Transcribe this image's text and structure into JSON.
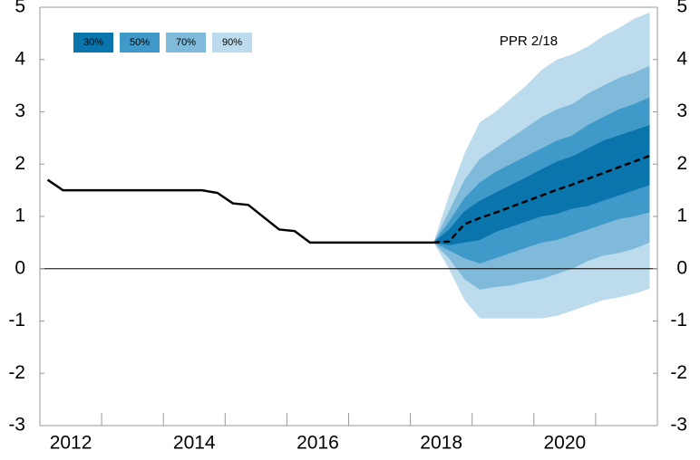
{
  "chart_data": {
    "type": "fan",
    "annotation": "PPR 2/18",
    "xlim": [
      2012,
      2022
    ],
    "xticks": [
      2012,
      2014,
      2016,
      2018,
      2020
    ],
    "ylim": [
      -3,
      5
    ],
    "yticks": [
      -3,
      -2,
      -1,
      0,
      1,
      2,
      3,
      4,
      5
    ],
    "fan_x": [
      2018.375,
      2018.625,
      2018.875,
      2019.125,
      2019.375,
      2019.625,
      2019.875,
      2020.125,
      2020.375,
      2020.625,
      2020.875,
      2021.125,
      2021.375,
      2021.625,
      2021.875
    ],
    "fan": [
      {
        "name": "30%",
        "color": "#0a75ad",
        "text_color": "#1a1a1a",
        "lower": [
          0.5,
          0.45,
          0.5,
          0.55,
          0.7,
          0.8,
          0.9,
          1.0,
          1.05,
          1.15,
          1.2,
          1.3,
          1.4,
          1.5,
          1.6
        ],
        "upper": [
          0.5,
          0.75,
          1.1,
          1.3,
          1.45,
          1.6,
          1.75,
          1.9,
          2.05,
          2.15,
          2.3,
          2.45,
          2.55,
          2.65,
          2.75
        ]
      },
      {
        "name": "50%",
        "color": "#3f9ac9",
        "text_color": "#1a1a1a",
        "lower": [
          0.5,
          0.35,
          0.2,
          0.1,
          0.2,
          0.3,
          0.4,
          0.5,
          0.55,
          0.65,
          0.75,
          0.85,
          0.95,
          1.0,
          1.08
        ],
        "upper": [
          0.5,
          0.9,
          1.35,
          1.65,
          1.85,
          2.0,
          2.15,
          2.3,
          2.45,
          2.55,
          2.75,
          2.9,
          3.05,
          3.15,
          3.28
        ]
      },
      {
        "name": "70%",
        "color": "#7fbadb",
        "text_color": "#1a1a1a",
        "lower": [
          0.5,
          0.2,
          -0.2,
          -0.4,
          -0.35,
          -0.32,
          -0.25,
          -0.2,
          -0.1,
          0,
          0.15,
          0.25,
          0.3,
          0.38,
          0.5
        ],
        "upper": [
          0.5,
          1.1,
          1.7,
          2.1,
          2.3,
          2.5,
          2.7,
          2.9,
          3.05,
          3.15,
          3.35,
          3.5,
          3.65,
          3.75,
          3.88
        ]
      },
      {
        "name": "90%",
        "color": "#bcdcee",
        "text_color": "#1a1a1a",
        "lower": [
          0.5,
          0,
          -0.6,
          -0.95,
          -0.95,
          -0.95,
          -0.95,
          -0.95,
          -0.9,
          -0.8,
          -0.7,
          -0.6,
          -0.55,
          -0.48,
          -0.38
        ],
        "upper": [
          0.5,
          1.4,
          2.2,
          2.8,
          3.0,
          3.25,
          3.5,
          3.8,
          4.0,
          4.1,
          4.25,
          4.45,
          4.6,
          4.78,
          4.9
        ]
      }
    ],
    "series": [
      {
        "color": "#000000",
        "dashed": false,
        "x": [
          2012.125,
          2012.375,
          2014.625,
          2014.875,
          2015.125,
          2015.375,
          2015.875,
          2016.125,
          2016.375,
          2018.375
        ],
        "values": [
          1.7,
          1.5,
          1.5,
          1.45,
          1.25,
          1.22,
          0.75,
          0.72,
          0.5,
          0.5
        ]
      },
      {
        "color": "#000000",
        "dashed": true,
        "x": [
          2018.375,
          2018.625,
          2018.875,
          2019.125,
          2019.375,
          2019.625,
          2019.875,
          2020.125,
          2020.375,
          2020.625,
          2020.875,
          2021.125,
          2021.375,
          2021.625,
          2021.875
        ],
        "values": [
          0.5,
          0.52,
          0.85,
          0.97,
          1.07,
          1.18,
          1.29,
          1.4,
          1.51,
          1.61,
          1.72,
          1.83,
          1.94,
          2.05,
          2.16
        ]
      }
    ]
  }
}
